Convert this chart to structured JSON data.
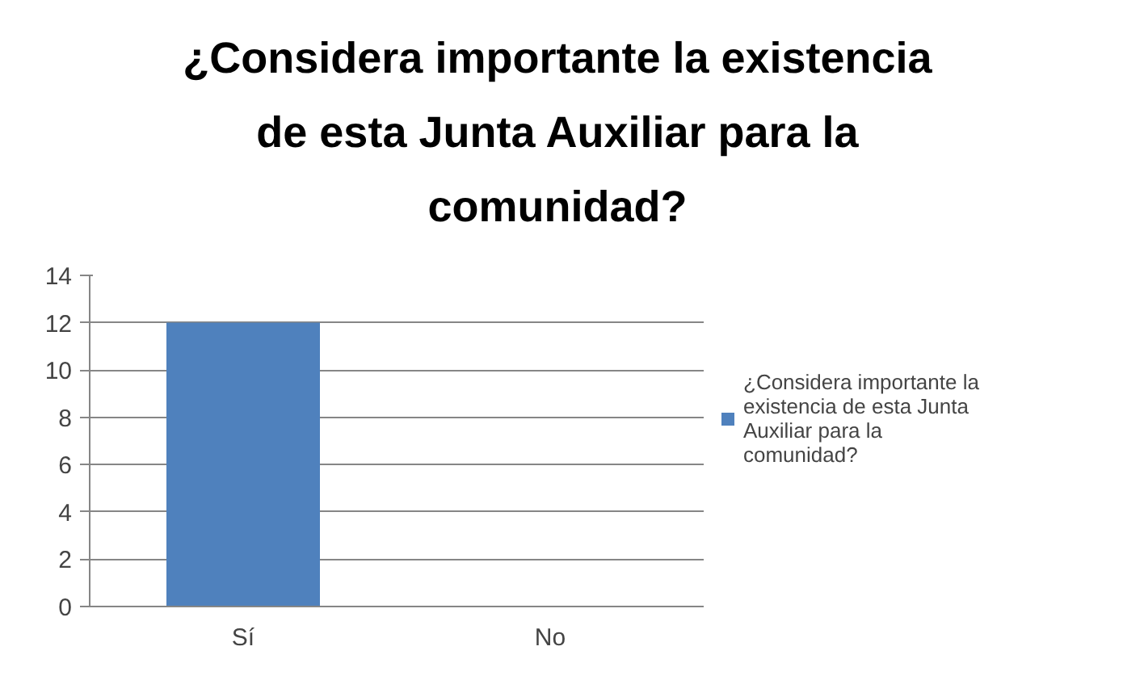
{
  "chart_data": {
    "type": "bar",
    "title": "¿Considera importante la existencia de esta Junta Auxiliar para la comunidad?",
    "categories": [
      "Sí",
      "No"
    ],
    "series": [
      {
        "name": "¿Considera importante la existencia de esta Junta Auxiliar para la comunidad?",
        "color": "#4f81bd",
        "values": [
          12,
          0
        ]
      }
    ],
    "ylim": [
      0,
      14
    ],
    "yticks": [
      0,
      2,
      4,
      6,
      8,
      10,
      12,
      14
    ],
    "grid": "y",
    "legend": "right"
  }
}
